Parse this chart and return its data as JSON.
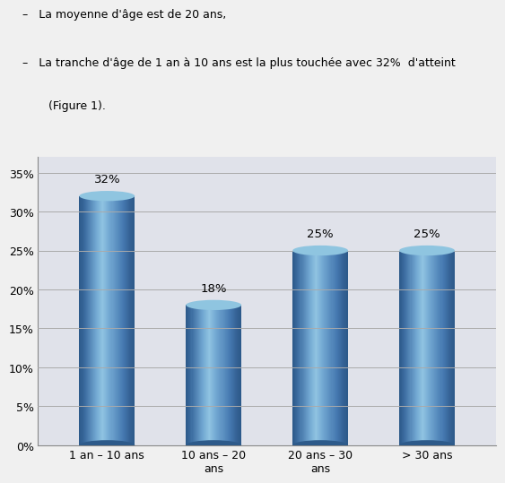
{
  "categories": [
    "1 an – 10 ans",
    "10 ans – 20\nans",
    "20 ans – 30\nans",
    "> 30 ans"
  ],
  "values": [
    0.32,
    0.18,
    0.25,
    0.25
  ],
  "labels": [
    "32%",
    "18%",
    "25%",
    "25%"
  ],
  "page_bg_color": "#f0f0f0",
  "chart_bg_color": "#e0e2ea",
  "chart_border_color": "#999999",
  "grid_color": "#aaaaaa",
  "label_fontsize": 9.5,
  "tick_fontsize": 9,
  "bar_width": 0.52,
  "ylim": [
    0,
    0.37
  ],
  "yticks": [
    0.0,
    0.05,
    0.1,
    0.15,
    0.2,
    0.25,
    0.3,
    0.35
  ],
  "ytick_labels": [
    "0%",
    "5%",
    "10%",
    "15%",
    "20%",
    "25%",
    "30%",
    "35%"
  ],
  "text_line1": "-   La moyenne d’âge est de 20 ans,",
  "text_line2": "-   La tranche d’âge de 1 an à 10 ans est la plus touchée avec 32%  d’atteint",
  "text_line3": "    (Figure 1).",
  "bar_dark": "#2d5a8a",
  "bar_mid": "#4a7ab5",
  "bar_light": "#7aadd4",
  "bar_highlight": "#9dc8e0",
  "top_ellipse_color": "#8abde0",
  "bottom_ellipse_color": "#3a6a9e"
}
